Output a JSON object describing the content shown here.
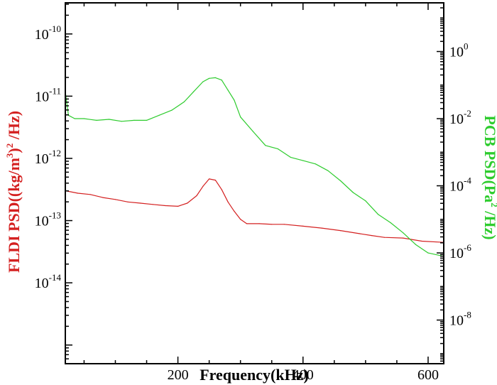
{
  "chart_data": {
    "type": "line",
    "xlabel": "Frequency(kHz)",
    "ylabel_left": {
      "main": "FLDI PSD((kg/m",
      "sup1": "3",
      "mid": ")",
      "sup2": "2",
      "end": " /Hz)"
    },
    "ylabel_right": {
      "main": "PCB PSD(Pa",
      "sup": "2",
      "end": " /Hz)"
    },
    "xlim": [
      20,
      625
    ],
    "x_ticks": [
      200,
      400,
      600
    ],
    "x_tick_labels": [
      "200",
      "400",
      "600"
    ],
    "left_axis": {
      "scale": "log",
      "ylim_exp": [
        -15.3,
        -9.5
      ],
      "ticks": [
        {
          "base": "10",
          "exp": "-14",
          "v": -14
        },
        {
          "base": "10",
          "exp": "-13",
          "v": -13
        },
        {
          "base": "10",
          "exp": "-12",
          "v": -12
        },
        {
          "base": "10",
          "exp": "-11",
          "v": -11
        },
        {
          "base": "10",
          "exp": "-10",
          "v": -10
        }
      ]
    },
    "right_axis": {
      "scale": "log",
      "ylim_exp": [
        -9.3,
        1.45
      ],
      "ticks": [
        {
          "base": "10",
          "exp": "-8",
          "v": -8
        },
        {
          "base": "10",
          "exp": "-6",
          "v": -6
        },
        {
          "base": "10",
          "exp": "-4",
          "v": -4
        },
        {
          "base": "10",
          "exp": "-2",
          "v": -2
        },
        {
          "base": "10",
          "exp": "0",
          "v": 0
        }
      ]
    },
    "series": [
      {
        "axis": "left",
        "color": "#d42020",
        "x": [
          20,
          40,
          60,
          80,
          100,
          120,
          140,
          160,
          180,
          200,
          215,
          230,
          240,
          250,
          260,
          270,
          280,
          290,
          300,
          310,
          330,
          350,
          370,
          400,
          430,
          460,
          490,
          510,
          530,
          560,
          590,
          625
        ],
        "y_log10": [
          -12.52,
          -12.56,
          -12.58,
          -12.63,
          -12.66,
          -12.7,
          -12.72,
          -12.74,
          -12.76,
          -12.77,
          -12.72,
          -12.6,
          -12.45,
          -12.33,
          -12.35,
          -12.5,
          -12.7,
          -12.85,
          -12.98,
          -13.05,
          -13.05,
          -13.06,
          -13.06,
          -13.09,
          -13.12,
          -13.16,
          -13.21,
          -13.24,
          -13.27,
          -13.28,
          -13.33,
          -13.35
        ]
      },
      {
        "axis": "right",
        "color": "#2ecc2e",
        "x": [
          20,
          25,
          35,
          50,
          70,
          90,
          110,
          130,
          150,
          170,
          190,
          210,
          225,
          240,
          250,
          260,
          270,
          280,
          290,
          300,
          320,
          340,
          360,
          380,
          400,
          420,
          440,
          460,
          480,
          500,
          520,
          540,
          560,
          580,
          600,
          625
        ],
        "y_log10": [
          -1.2,
          -1.9,
          -2.0,
          -2.0,
          -2.05,
          -2.02,
          -2.08,
          -2.05,
          -2.05,
          -1.9,
          -1.75,
          -1.5,
          -1.2,
          -0.9,
          -0.8,
          -0.78,
          -0.85,
          -1.15,
          -1.45,
          -1.95,
          -2.38,
          -2.8,
          -2.9,
          -3.15,
          -3.25,
          -3.35,
          -3.55,
          -3.85,
          -4.2,
          -4.45,
          -4.85,
          -5.1,
          -5.4,
          -5.75,
          -6.0,
          -6.1
        ]
      }
    ]
  }
}
